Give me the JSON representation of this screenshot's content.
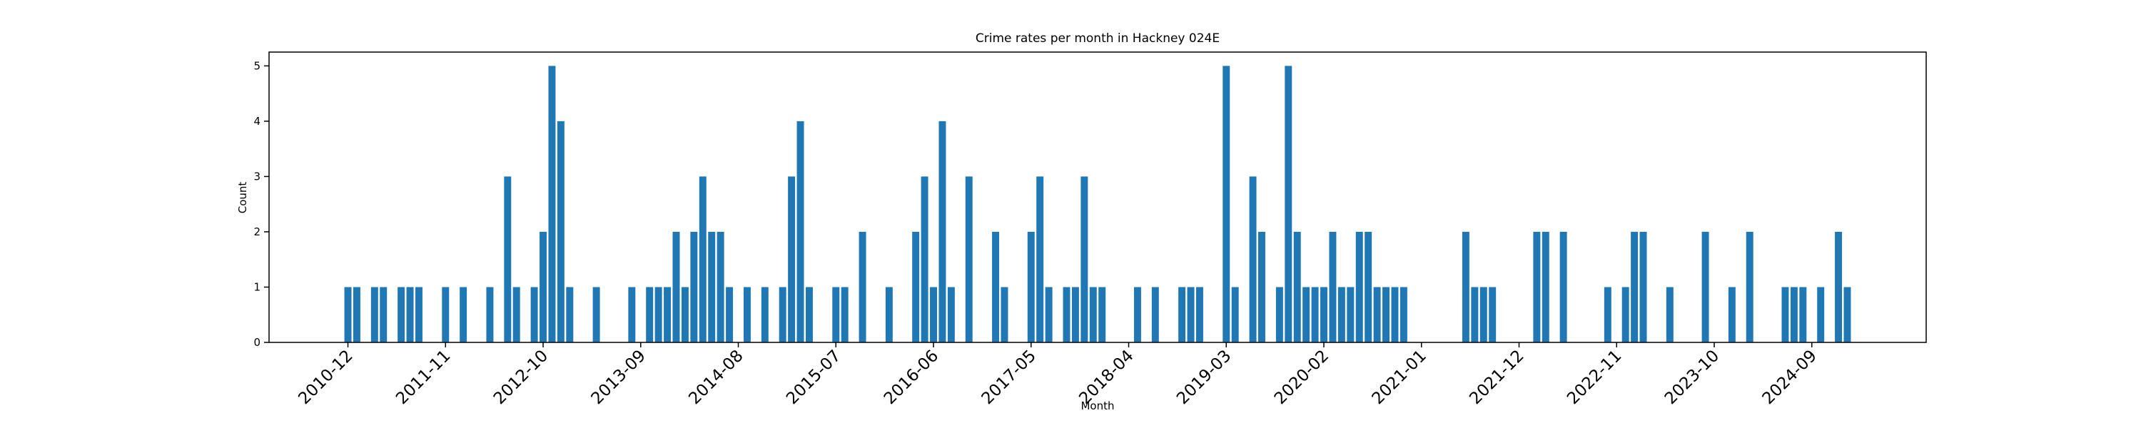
{
  "chart_data": {
    "type": "bar",
    "title": "Crime rates per month in Hackney 024E",
    "x_label": "Month",
    "y_label": "Count",
    "color": "#1f77b4",
    "categories": [
      "2010-12",
      null,
      null,
      null,
      null,
      null,
      null,
      null,
      null,
      null,
      null,
      "2011-11",
      null,
      null,
      null,
      null,
      null,
      null,
      null,
      null,
      null,
      null,
      "2012-10",
      null,
      null,
      null,
      null,
      null,
      null,
      null,
      null,
      null,
      null,
      "2013-09",
      null,
      null,
      null,
      null,
      null,
      null,
      null,
      null,
      null,
      null,
      "2014-08",
      null,
      null,
      null,
      null,
      null,
      null,
      null,
      null,
      null,
      null,
      "2015-07",
      null,
      null,
      null,
      null,
      null,
      null,
      null,
      null,
      null,
      null,
      "2016-06",
      null,
      null,
      null,
      null,
      null,
      null,
      null,
      null,
      null,
      null,
      "2017-05",
      null,
      null,
      null,
      null,
      null,
      null,
      null,
      null,
      null,
      null,
      "2018-04",
      null,
      null,
      null,
      null,
      null,
      null,
      null,
      null,
      null,
      null,
      "2019-03",
      null,
      null,
      null,
      null,
      null,
      null,
      null,
      null,
      null,
      null,
      "2020-02",
      null,
      null,
      null,
      null,
      null,
      null,
      null,
      null,
      null,
      null,
      "2021-01",
      null,
      null,
      null,
      null,
      null,
      null,
      null,
      null,
      null,
      null,
      "2021-12",
      null,
      null,
      null,
      null,
      null,
      null,
      null,
      null,
      null,
      null,
      "2022-11",
      null,
      null,
      null,
      null,
      null,
      null,
      null,
      null,
      null,
      null,
      "2023-10",
      null,
      null,
      null,
      null,
      null,
      null,
      null,
      null,
      null,
      null,
      "2024-09",
      null,
      null,
      null,
      null
    ],
    "values": [
      1,
      1,
      0,
      1,
      1,
      0,
      1,
      1,
      1,
      0,
      0,
      1,
      0,
      1,
      0,
      0,
      1,
      0,
      3,
      1,
      0,
      1,
      2,
      5,
      4,
      1,
      0,
      0,
      1,
      0,
      0,
      0,
      1,
      0,
      1,
      1,
      1,
      2,
      1,
      2,
      3,
      2,
      2,
      1,
      0,
      1,
      0,
      1,
      0,
      1,
      3,
      4,
      1,
      0,
      0,
      1,
      1,
      0,
      2,
      0,
      0,
      1,
      0,
      0,
      2,
      3,
      1,
      4,
      1,
      0,
      3,
      0,
      0,
      2,
      1,
      0,
      0,
      2,
      3,
      1,
      0,
      1,
      1,
      3,
      1,
      1,
      0,
      0,
      0,
      1,
      0,
      1,
      0,
      0,
      1,
      1,
      1,
      0,
      0,
      5,
      1,
      0,
      3,
      2,
      0,
      1,
      5,
      2,
      1,
      1,
      1,
      2,
      1,
      1,
      2,
      2,
      1,
      1,
      1,
      1,
      0,
      0,
      0,
      0,
      0,
      0,
      2,
      1,
      1,
      1,
      0,
      0,
      0,
      0,
      2,
      2,
      0,
      2,
      0,
      0,
      0,
      0,
      1,
      0,
      1,
      2,
      2,
      0,
      0,
      1,
      0,
      0,
      0,
      2,
      0,
      0,
      1,
      0,
      2,
      0,
      0,
      0,
      1,
      1,
      1,
      0,
      1,
      0,
      2,
      1
    ],
    "ylim": [
      0,
      5.25
    ],
    "yticks": [
      0,
      1,
      2,
      3,
      4,
      5
    ]
  }
}
